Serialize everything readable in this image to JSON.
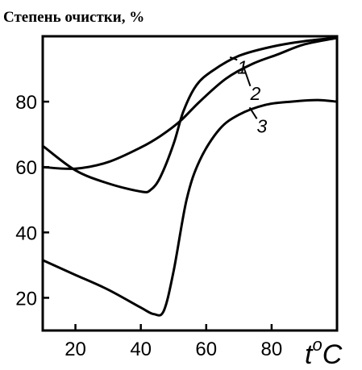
{
  "chart_data": {
    "type": "line",
    "title": "Степень очистки, %",
    "xlabel_main": "t",
    "xlabel_sup": "o",
    "xlabel_unit": "C",
    "xlim": [
      10,
      100
    ],
    "ylim": [
      10,
      100
    ],
    "x_ticks": [
      20,
      40,
      60,
      80
    ],
    "y_ticks": [
      20,
      40,
      60,
      80
    ],
    "x_tick_labels": [
      "20",
      "40",
      "60",
      "80"
    ],
    "y_tick_labels": [
      "20",
      "40",
      "60",
      "80"
    ],
    "series": [
      {
        "label": "1",
        "label_at": [
          68,
          94
        ],
        "points": [
          [
            10,
            66.5
          ],
          [
            20,
            59
          ],
          [
            30,
            55
          ],
          [
            40,
            52.5
          ],
          [
            43,
            53
          ],
          [
            46,
            57
          ],
          [
            50,
            67
          ],
          [
            53,
            77
          ],
          [
            57,
            85
          ],
          [
            62,
            89.5
          ],
          [
            70,
            94
          ],
          [
            80,
            96.8
          ],
          [
            90,
            98.5
          ],
          [
            100,
            99.5
          ]
        ]
      },
      {
        "label": "2",
        "label_at": [
          72,
          86
        ],
        "points": [
          [
            10,
            60
          ],
          [
            20,
            59.5
          ],
          [
            30,
            61.5
          ],
          [
            40,
            66
          ],
          [
            46,
            69.5
          ],
          [
            52,
            74
          ],
          [
            58,
            80
          ],
          [
            66,
            87
          ],
          [
            74,
            91.5
          ],
          [
            82,
            94.5
          ],
          [
            90,
            97.5
          ],
          [
            100,
            99.5
          ]
        ]
      },
      {
        "label": "3",
        "label_at": [
          74,
          76
        ],
        "points": [
          [
            10,
            31.5
          ],
          [
            20,
            27
          ],
          [
            30,
            22.5
          ],
          [
            40,
            17
          ],
          [
            44,
            15
          ],
          [
            47,
            16
          ],
          [
            50,
            28
          ],
          [
            54,
            50
          ],
          [
            58,
            62
          ],
          [
            64,
            71.5
          ],
          [
            70,
            76
          ],
          [
            78,
            79
          ],
          [
            86,
            80
          ],
          [
            94,
            80.5
          ],
          [
            100,
            80
          ]
        ]
      }
    ]
  }
}
